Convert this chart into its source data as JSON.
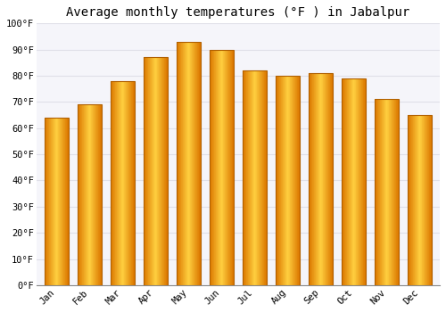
{
  "title": "Average monthly temperatures (°F ) in Jabalpur",
  "months": [
    "Jan",
    "Feb",
    "Mar",
    "Apr",
    "May",
    "Jun",
    "Jul",
    "Aug",
    "Sep",
    "Oct",
    "Nov",
    "Dec"
  ],
  "values": [
    64,
    69,
    78,
    87,
    93,
    90,
    82,
    80,
    81,
    79,
    71,
    65
  ],
  "bar_color_center": "#FFD040",
  "bar_color_edge": "#E07800",
  "background_color": "#FFFFFF",
  "plot_bg_color": "#F5F5FA",
  "ylim": [
    0,
    100
  ],
  "yticks": [
    0,
    10,
    20,
    30,
    40,
    50,
    60,
    70,
    80,
    90,
    100
  ],
  "ytick_labels": [
    "0°F",
    "10°F",
    "20°F",
    "30°F",
    "40°F",
    "50°F",
    "60°F",
    "70°F",
    "80°F",
    "90°F",
    "100°F"
  ],
  "grid_color": "#E0E0E8",
  "title_fontsize": 10,
  "tick_fontsize": 7.5,
  "font_family": "monospace",
  "bar_width": 0.72
}
